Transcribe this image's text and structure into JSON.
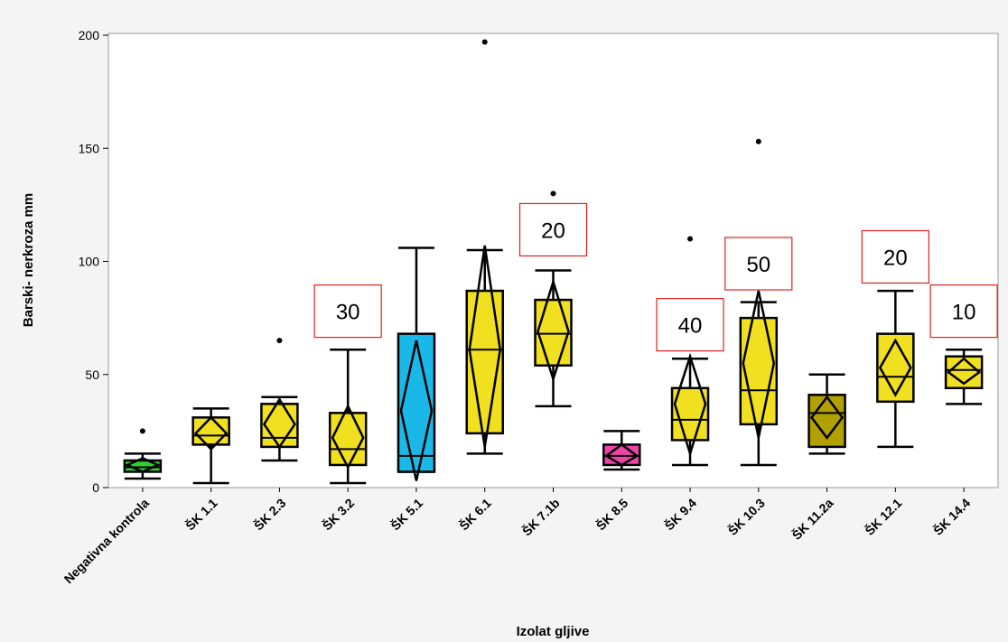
{
  "chart_data": {
    "type": "box",
    "title": "",
    "xlabel": "Izolat gljive",
    "ylabel": "Barski- nerkroza mm",
    "ylim": [
      0,
      200
    ],
    "yticks": [
      "0",
      "50",
      "100",
      "150",
      "200"
    ],
    "grid": false,
    "categories": [
      "Negativna kontrola",
      "ŠK 1.1",
      "ŠK 2.3",
      "ŠK 3.2",
      "ŠK 5.1",
      "ŠK 6.1",
      "ŠK 7.1b",
      "ŠK 8.5",
      "ŠK 9.4",
      "ŠK 10.3",
      "ŠK 11.2a",
      "ŠK 12.1",
      "ŠK 14.4"
    ],
    "boxes": [
      {
        "category": "Negativna kontrola",
        "color": "#33cc33",
        "whisker_low": 4,
        "q1": 7,
        "median": 9,
        "q3": 12,
        "whisker_high": 15,
        "mean": 10,
        "ci_low": 7,
        "ci_high": 13,
        "outliers": [
          25
        ]
      },
      {
        "category": "ŠK 1.1",
        "color": "#f0e020",
        "whisker_low": 2,
        "q1": 19,
        "median": 23,
        "q3": 31,
        "whisker_high": 35,
        "mean": 24,
        "ci_low": 17,
        "ci_high": 31,
        "outliers": []
      },
      {
        "category": "ŠK 2.3",
        "color": "#f0e020",
        "whisker_low": 12,
        "q1": 18,
        "median": 22,
        "q3": 37,
        "whisker_high": 40,
        "mean": 28,
        "ci_low": 18,
        "ci_high": 39,
        "outliers": [
          65
        ]
      },
      {
        "category": "ŠK 3.2",
        "color": "#f0e020",
        "whisker_low": 2,
        "q1": 10,
        "median": 17,
        "q3": 33,
        "whisker_high": 61,
        "mean": 22,
        "ci_low": 9,
        "ci_high": 36,
        "outliers": []
      },
      {
        "category": "ŠK 5.1",
        "color": "#1ab8e8",
        "whisker_low": 7,
        "q1": 7,
        "median": 14,
        "q3": 68,
        "whisker_high": 106,
        "mean": 34,
        "ci_low": 3,
        "ci_high": 65,
        "outliers": []
      },
      {
        "category": "ŠK 6.1",
        "color": "#f0e020",
        "whisker_low": 15,
        "q1": 24,
        "median": 61,
        "q3": 87,
        "whisker_high": 105,
        "mean": 61,
        "ci_low": 18,
        "ci_high": 107,
        "outliers": [
          197
        ]
      },
      {
        "category": "ŠK 7.1b",
        "color": "#f0e020",
        "whisker_low": 36,
        "q1": 54,
        "median": 68,
        "q3": 83,
        "whisker_high": 96,
        "mean": 69,
        "ci_low": 48,
        "ci_high": 91,
        "outliers": [
          130
        ]
      },
      {
        "category": "ŠK 8.5",
        "color": "#ee44aa",
        "whisker_low": 8,
        "q1": 10,
        "median": 14,
        "q3": 19,
        "whisker_high": 25,
        "mean": 14,
        "ci_low": 10,
        "ci_high": 19,
        "outliers": []
      },
      {
        "category": "ŠK 9.4",
        "color": "#f0e020",
        "whisker_low": 10,
        "q1": 21,
        "median": 30,
        "q3": 44,
        "whisker_high": 57,
        "mean": 37,
        "ci_low": 15,
        "ci_high": 58,
        "outliers": [
          110
        ]
      },
      {
        "category": "ŠK 10.3",
        "color": "#f0e020",
        "whisker_low": 10,
        "q1": 28,
        "median": 43,
        "q3": 75,
        "whisker_high": 82,
        "mean": 55,
        "ci_low": 22,
        "ci_high": 87,
        "outliers": [
          153
        ]
      },
      {
        "category": "ŠK 11.2a",
        "color": "#b0a000",
        "whisker_low": 15,
        "q1": 18,
        "median": 33,
        "q3": 41,
        "whisker_high": 50,
        "mean": 31,
        "ci_low": 22,
        "ci_high": 40,
        "outliers": []
      },
      {
        "category": "ŠK 12.1",
        "color": "#f0e020",
        "whisker_low": 18,
        "q1": 38,
        "median": 49,
        "q3": 68,
        "whisker_high": 87,
        "mean": 53,
        "ci_low": 41,
        "ci_high": 65,
        "outliers": []
      },
      {
        "category": "ŠK 14.4",
        "color": "#f0e020",
        "whisker_low": 37,
        "q1": 44,
        "median": 52,
        "q3": 58,
        "whisker_high": 61,
        "mean": 51,
        "ci_low": 46,
        "ci_high": 57,
        "outliers": []
      }
    ],
    "annotations": [
      {
        "category": "ŠK 3.2",
        "text": "30",
        "y": 78
      },
      {
        "category": "ŠK 7.1b",
        "text": "20",
        "y": 114
      },
      {
        "category": "ŠK 9.4",
        "text": "40",
        "y": 72
      },
      {
        "category": "ŠK 10.3",
        "text": "50",
        "y": 99
      },
      {
        "category": "ŠK 12.1",
        "text": "20",
        "y": 102
      },
      {
        "category": "ŠK 14.4",
        "text": "10",
        "y": 78
      }
    ]
  }
}
